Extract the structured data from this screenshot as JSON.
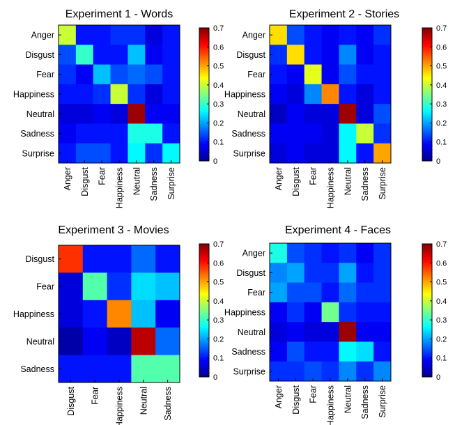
{
  "colorscale": {
    "name": "jet",
    "stops": [
      "#00008F",
      "#0000FF",
      "#0080FF",
      "#00FFFF",
      "#80FF80",
      "#FFFF00",
      "#FF8000",
      "#FF0000",
      "#800000"
    ]
  },
  "chart_data": [
    {
      "type": "heatmap",
      "title": "Experiment 1 - Words",
      "rows": [
        "Anger",
        "Disgust",
        "Fear",
        "Happiness",
        "Neutral",
        "Sadness",
        "Surprise"
      ],
      "cols": [
        "Anger",
        "Disgust",
        "Fear",
        "Happiness",
        "Neutral",
        "Sadness",
        "Surprise"
      ],
      "values": [
        [
          0.4,
          0.1,
          0.1,
          0.12,
          0.12,
          0.06,
          0.1
        ],
        [
          0.14,
          0.3,
          0.1,
          0.1,
          0.22,
          0.08,
          0.1
        ],
        [
          0.12,
          0.08,
          0.22,
          0.14,
          0.16,
          0.14,
          0.1
        ],
        [
          0.1,
          0.1,
          0.12,
          0.4,
          0.12,
          0.06,
          0.1
        ],
        [
          0.06,
          0.06,
          0.08,
          0.06,
          0.68,
          0.08,
          0.08
        ],
        [
          0.08,
          0.1,
          0.1,
          0.1,
          0.28,
          0.28,
          0.1
        ],
        [
          0.1,
          0.14,
          0.14,
          0.1,
          0.26,
          0.12,
          0.26
        ]
      ],
      "colorbar": {
        "min": 0,
        "max": 0.7,
        "ticks": [
          "0.7",
          "0.6",
          "0.5",
          "0.4",
          "0.3",
          "0.2",
          "0.1",
          "0"
        ]
      }
    },
    {
      "type": "heatmap",
      "title": "Experiment 2 - Stories",
      "rows": [
        "Anger",
        "Disgust",
        "Fear",
        "Happiness",
        "Neutral",
        "Sadness",
        "Surprise"
      ],
      "cols": [
        "Anger",
        "Disgust",
        "Fear",
        "Happiness",
        "Neutral",
        "Sadness",
        "Surprise"
      ],
      "values": [
        [
          0.46,
          0.14,
          0.1,
          0.08,
          0.1,
          0.08,
          0.12
        ],
        [
          0.12,
          0.46,
          0.1,
          0.08,
          0.18,
          0.08,
          0.1
        ],
        [
          0.1,
          0.08,
          0.42,
          0.08,
          0.14,
          0.1,
          0.1
        ],
        [
          0.08,
          0.06,
          0.18,
          0.52,
          0.1,
          0.06,
          0.1
        ],
        [
          0.04,
          0.08,
          0.06,
          0.06,
          0.68,
          0.06,
          0.14
        ],
        [
          0.08,
          0.08,
          0.08,
          0.06,
          0.26,
          0.4,
          0.12
        ],
        [
          0.06,
          0.08,
          0.06,
          0.06,
          0.26,
          0.1,
          0.5
        ]
      ],
      "colorbar": {
        "min": 0,
        "max": 0.7,
        "ticks": [
          "0.7",
          "0.6",
          "0.5",
          "0.4",
          "0.3",
          "0.2",
          "0.1",
          "0"
        ]
      }
    },
    {
      "type": "heatmap",
      "title": "Experiment 3 - Movies",
      "rows": [
        "Disgust",
        "Fear",
        "Happiness",
        "Neutral",
        "Sadness"
      ],
      "cols": [
        "Disgust",
        "Fear",
        "Happiness",
        "Neutral",
        "Sadness"
      ],
      "values": [
        [
          0.58,
          0.1,
          0.1,
          0.16,
          0.1
        ],
        [
          0.06,
          0.32,
          0.12,
          0.24,
          0.22
        ],
        [
          0.06,
          0.1,
          0.52,
          0.22,
          0.08
        ],
        [
          0.02,
          0.08,
          0.04,
          0.66,
          0.16
        ],
        [
          0.1,
          0.1,
          0.1,
          0.32,
          0.32
        ]
      ],
      "colorbar": {
        "min": 0,
        "max": 0.7,
        "ticks": [
          "0.7",
          "0.6",
          "0.5",
          "0.4",
          "0.3",
          "0.2",
          "0.1",
          "0"
        ]
      }
    },
    {
      "type": "heatmap",
      "title": "Experiment 4 - Faces",
      "rows": [
        "Anger",
        "Disgust",
        "Fear",
        "Happiness",
        "Neutral",
        "Sadness",
        "Surprise"
      ],
      "cols": [
        "Anger",
        "Disgust",
        "Fear",
        "Happiness",
        "Neutral",
        "Sadness",
        "Surprise"
      ],
      "values": [
        [
          0.28,
          0.14,
          0.12,
          0.1,
          0.12,
          0.08,
          0.12
        ],
        [
          0.18,
          0.2,
          0.12,
          0.12,
          0.2,
          0.1,
          0.12
        ],
        [
          0.2,
          0.14,
          0.14,
          0.1,
          0.16,
          0.12,
          0.12
        ],
        [
          0.08,
          0.12,
          0.08,
          0.34,
          0.12,
          0.1,
          0.1
        ],
        [
          0.06,
          0.08,
          0.06,
          0.06,
          0.68,
          0.08,
          0.08
        ],
        [
          0.08,
          0.14,
          0.1,
          0.1,
          0.26,
          0.24,
          0.1
        ],
        [
          0.12,
          0.12,
          0.14,
          0.12,
          0.18,
          0.12,
          0.18
        ]
      ],
      "colorbar": {
        "min": 0,
        "max": 0.7,
        "ticks": [
          "0.7",
          "0.6",
          "0.5",
          "0.4",
          "0.3",
          "0.2",
          "0.1",
          "0"
        ]
      }
    }
  ]
}
